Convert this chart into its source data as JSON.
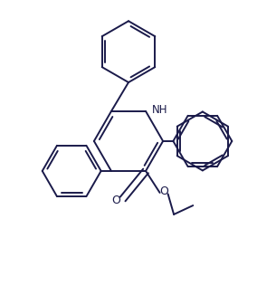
{
  "line_color": "#1a1a4a",
  "line_width": 1.4,
  "font_size": 8.5,
  "nh_label": "NH",
  "o_label": "O",
  "figsize": [
    2.84,
    3.26
  ],
  "dpi": 100
}
